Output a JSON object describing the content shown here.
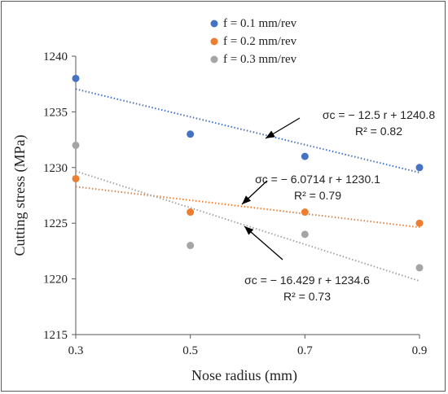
{
  "chart_data": {
    "type": "scatter",
    "xlabel": "Nose radius (mm)",
    "ylabel": "Cutting stress (MPa)",
    "xlim": [
      0.3,
      0.9
    ],
    "ylim": [
      1215,
      1240
    ],
    "x_ticks": [
      "0.3",
      "0.5",
      "0.7",
      "0.9"
    ],
    "y_ticks": [
      "1215",
      "1220",
      "1225",
      "1230",
      "1235",
      "1240"
    ],
    "grid": false,
    "legend_position": "top-center",
    "series": [
      {
        "name": "f = 0.1 mm/rev",
        "color": "#4472C4",
        "x": [
          0.3,
          0.5,
          0.7,
          0.9
        ],
        "y": [
          1238,
          1233,
          1231,
          1230
        ],
        "trendline": {
          "slope": -12.5,
          "intercept": 1240.8
        },
        "equation": "σc = − 12.5 r + 1240.8",
        "r2": "R² = 0.82"
      },
      {
        "name": "f = 0.2 mm/rev",
        "color": "#ED7D31",
        "x": [
          0.3,
          0.5,
          0.7,
          0.9
        ],
        "y": [
          1229,
          1226,
          1226,
          1225
        ],
        "trendline": {
          "slope": -6.0714,
          "intercept": 1230.1
        },
        "equation": "σc = − 6.0714 r + 1230.1",
        "r2": "R² = 0.79"
      },
      {
        "name": "f = 0.3 mm/rev",
        "color": "#A5A5A5",
        "x": [
          0.3,
          0.5,
          0.7,
          0.9
        ],
        "y": [
          1232,
          1223,
          1224,
          1221
        ],
        "trendline": {
          "slope": -16.429,
          "intercept": 1234.6
        },
        "equation": "σc = − 16.429 r + 1234.6",
        "r2": "R² = 0.73"
      }
    ]
  }
}
